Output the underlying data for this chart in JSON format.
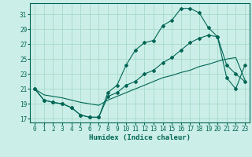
{
  "xlabel": "Humidex (Indice chaleur)",
  "background_color": "#cceee8",
  "grid_color": "#aaddcc",
  "line_color": "#006655",
  "xlim": [
    -0.5,
    23.5
  ],
  "ylim": [
    16.5,
    32.5
  ],
  "xticks": [
    0,
    1,
    2,
    3,
    4,
    5,
    6,
    7,
    8,
    9,
    10,
    11,
    12,
    13,
    14,
    15,
    16,
    17,
    18,
    19,
    20,
    21,
    22,
    23
  ],
  "yticks": [
    17,
    19,
    21,
    23,
    25,
    27,
    29,
    31
  ],
  "curve1_x": [
    0,
    1,
    2,
    3,
    4,
    5,
    6,
    7,
    8,
    9,
    10,
    11,
    12,
    13,
    14,
    15,
    16,
    17,
    18,
    19,
    20,
    21,
    22,
    23
  ],
  "curve1_y": [
    21.0,
    19.5,
    19.2,
    19.0,
    18.5,
    17.5,
    17.2,
    17.2,
    20.5,
    21.5,
    24.2,
    26.2,
    27.2,
    27.5,
    29.5,
    30.2,
    31.8,
    31.8,
    31.2,
    29.2,
    28.0,
    22.5,
    21.0,
    24.2
  ],
  "curve2_x": [
    0,
    1,
    2,
    3,
    4,
    5,
    6,
    7,
    8,
    9,
    10,
    11,
    12,
    13,
    14,
    15,
    16,
    17,
    18,
    19,
    20,
    21,
    22,
    23
  ],
  "curve2_y": [
    21.0,
    19.5,
    19.2,
    19.0,
    18.5,
    17.5,
    17.2,
    17.2,
    20.0,
    20.5,
    21.5,
    22.0,
    23.0,
    23.5,
    24.5,
    25.2,
    26.2,
    27.2,
    27.8,
    28.2,
    28.0,
    24.2,
    23.0,
    22.0
  ],
  "curve3_x": [
    0,
    1,
    2,
    3,
    4,
    5,
    6,
    7,
    8,
    9,
    10,
    11,
    12,
    13,
    14,
    15,
    16,
    17,
    18,
    19,
    20,
    21,
    22,
    23
  ],
  "curve3_y": [
    21.0,
    20.2,
    20.0,
    19.8,
    19.5,
    19.2,
    19.0,
    18.8,
    19.5,
    20.0,
    20.5,
    21.0,
    21.5,
    22.0,
    22.5,
    22.8,
    23.2,
    23.5,
    24.0,
    24.3,
    24.7,
    25.0,
    25.2,
    22.2
  ]
}
